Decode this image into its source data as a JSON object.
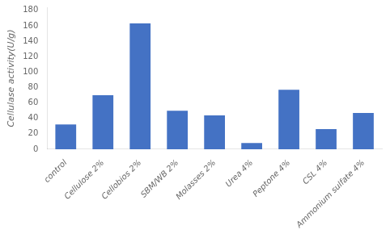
{
  "chart_data": {
    "type": "bar",
    "categories": [
      "control",
      "Cellulose 2%",
      "Cellobios 2%",
      "SBM/WB 2%",
      "Molasses 2%",
      "Urea 4%",
      "Peptone 4%",
      "CSL 4%",
      "Ammonium sulfate 4%"
    ],
    "values": [
      32,
      70,
      163,
      50,
      44,
      8,
      77,
      26,
      47
    ],
    "color": "#4472C4",
    "ylabel": "Cellulase activity(U/g)",
    "ylim": [
      0,
      184
    ],
    "yticks": [
      0,
      20,
      40,
      60,
      80,
      100,
      120,
      140,
      160,
      180
    ],
    "grid": false
  }
}
